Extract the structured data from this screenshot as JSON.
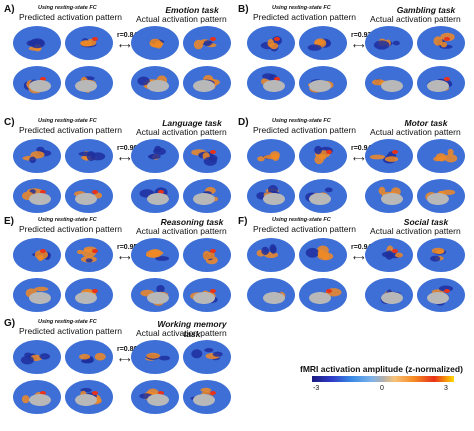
{
  "panels": [
    {
      "letter": "A)",
      "note": "Using resting-state FC",
      "predicted": "Predicted activation pattern",
      "task": "Emotion task",
      "actual": "Actual activation pattern",
      "r": "r=0.84"
    },
    {
      "letter": "B)",
      "note": "Using resting-state FC",
      "predicted": "Predicted activation pattern",
      "task": "Gambling task",
      "actual": "Actual activation pattern",
      "r": "r=0.93"
    },
    {
      "letter": "C)",
      "note": "Using resting-state FC",
      "predicted": "Predicted activation pattern",
      "task": "Language task",
      "actual": "Actual activation pattern",
      "r": "r=0.90"
    },
    {
      "letter": "D)",
      "note": "Using resting-state FC",
      "predicted": "Predicted activation pattern",
      "task": "Motor task",
      "actual": "Actual activation pattern",
      "r": "r=0.94"
    },
    {
      "letter": "E)",
      "note": "Using resting-state FC",
      "predicted": "Predicted activation pattern",
      "task": "Reasoning task",
      "actual": "Actual activation pattern",
      "r": "r=0.95"
    },
    {
      "letter": "F)",
      "note": "Using resting-state FC",
      "predicted": "Predicted activation pattern",
      "task": "Social task",
      "actual": "Actual activation pattern",
      "r": "r=0.94"
    },
    {
      "letter": "G)",
      "note": "Using resting-state FC",
      "predicted": "Predicted activation pattern",
      "task": "Working memory task",
      "actual": "Actual activation pattern",
      "r": "r=0.86"
    }
  ],
  "colorbar": {
    "title": "fMRI activation amplitude (z-normalized)",
    "min_label": "-3",
    "mid_label": "0",
    "max_label": "3"
  },
  "colors": {
    "cortex_blue": "#3d6fd6",
    "medial_wall": "#b8b8b8",
    "activation_orange": "#f08a24",
    "activation_red": "#e8321a",
    "deep_blue": "#1f2f9e"
  }
}
